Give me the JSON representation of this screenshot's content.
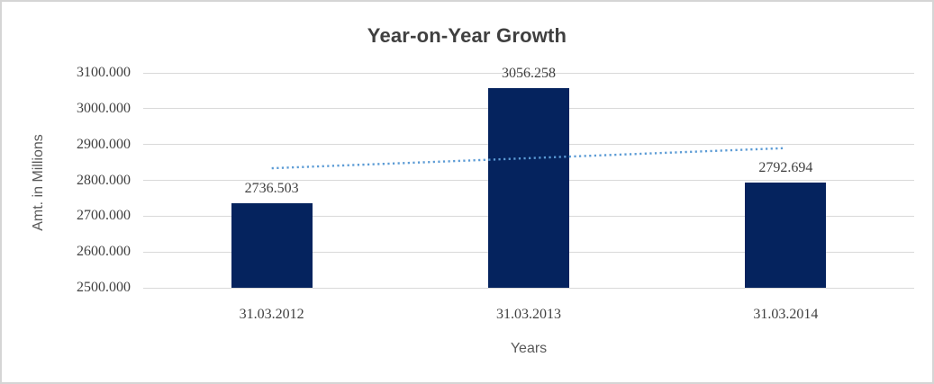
{
  "chart_data": {
    "type": "bar",
    "title": "Year-on-Year Growth",
    "xlabel": "Years",
    "ylabel": "Amt. in Millions",
    "categories": [
      "31.03.2012",
      "31.03.2013",
      "31.03.2014"
    ],
    "values": [
      2736.503,
      3056.258,
      2792.694
    ],
    "data_labels": [
      "2736.503",
      "3056.258",
      "2792.694"
    ],
    "y_ticks": [
      "3100.000",
      "3000.000",
      "2900.000",
      "2800.000",
      "2700.000",
      "2600.000",
      "2500.000"
    ],
    "ylim": [
      2500,
      3100
    ],
    "grid": true,
    "legend": "none",
    "trendline": {
      "type": "linear",
      "style": "dotted",
      "start_value": 2833.7,
      "end_value": 2889.9
    },
    "colors": {
      "bar": "#05235E",
      "trendline": "#5B9BD5",
      "gridline": "#D9D9D9",
      "title_text": "#404040",
      "axis_text": "#3F3F3F",
      "axis_title_text": "#595959",
      "chart_border": "#D5D5D5"
    }
  }
}
